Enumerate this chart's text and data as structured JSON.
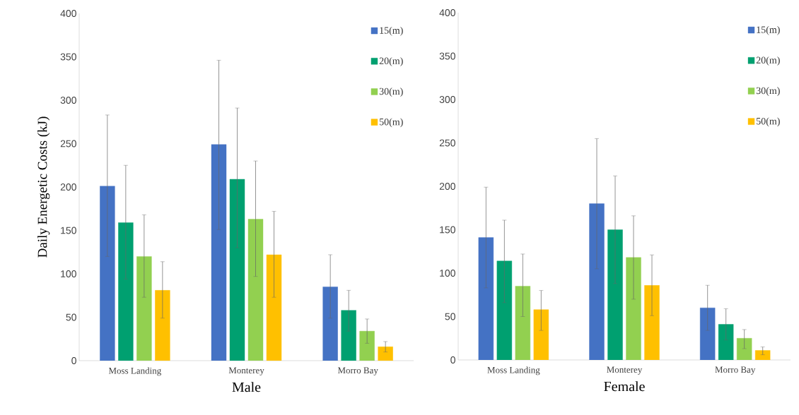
{
  "chart_data": [
    {
      "type": "bar",
      "ylabel": "Daily Energetic Costs (kJ)",
      "xlabel": "Male",
      "categories": [
        "Moss Landing",
        "Monterey",
        "Morro Bay"
      ],
      "ylim": [
        0,
        400
      ],
      "yticks": [
        0,
        50,
        100,
        150,
        200,
        250,
        300,
        350,
        400
      ],
      "legend": "top right",
      "series": [
        {
          "name": "15(m)",
          "color": "#4472c4",
          "values": [
            201,
            249,
            85
          ],
          "errors": [
            [
              120,
              283
            ],
            [
              151,
              346
            ],
            [
              49,
              122
            ]
          ]
        },
        {
          "name": "20(m)",
          "color": "#00a070",
          "values": [
            159,
            209,
            58
          ],
          "errors": [
            [
              94,
              225
            ],
            [
              130,
              291
            ],
            [
              34,
              81
            ]
          ]
        },
        {
          "name": "30(m)",
          "color": "#92d050",
          "values": [
            120,
            163,
            34
          ],
          "errors": [
            [
              73,
              168
            ],
            [
              97,
              230
            ],
            [
              20,
              48
            ]
          ]
        },
        {
          "name": "50(m)",
          "color": "#ffc000",
          "values": [
            81,
            122,
            16
          ],
          "errors": [
            [
              49,
              114
            ],
            [
              73,
              172
            ],
            [
              10,
              22
            ]
          ]
        }
      ]
    },
    {
      "type": "bar",
      "xlabel": "Female",
      "categories": [
        "Moss Landing",
        "Monterey",
        "Morro Bay"
      ],
      "ylim": [
        0,
        400
      ],
      "yticks": [
        0,
        50,
        100,
        150,
        200,
        250,
        300,
        350,
        400
      ],
      "legend": "top right",
      "series": [
        {
          "name": "15(m)",
          "color": "#4472c4",
          "values": [
            141,
            180,
            60
          ],
          "errors": [
            [
              83,
              199
            ],
            [
              105,
              255
            ],
            [
              34,
              86
            ]
          ]
        },
        {
          "name": "20(m)",
          "color": "#00a070",
          "values": [
            114,
            150,
            41
          ],
          "errors": [
            [
              66,
              161
            ],
            [
              88,
              212
            ],
            [
              23,
              59
            ]
          ]
        },
        {
          "name": "30(m)",
          "color": "#92d050",
          "values": [
            85,
            118,
            25
          ],
          "errors": [
            [
              50,
              122
            ],
            [
              70,
              166
            ],
            [
              13,
              35
            ]
          ]
        },
        {
          "name": "50(m)",
          "color": "#ffc000",
          "values": [
            58,
            86,
            11
          ],
          "errors": [
            [
              34,
              80
            ],
            [
              51,
              121
            ],
            [
              6,
              15
            ]
          ]
        }
      ]
    }
  ]
}
